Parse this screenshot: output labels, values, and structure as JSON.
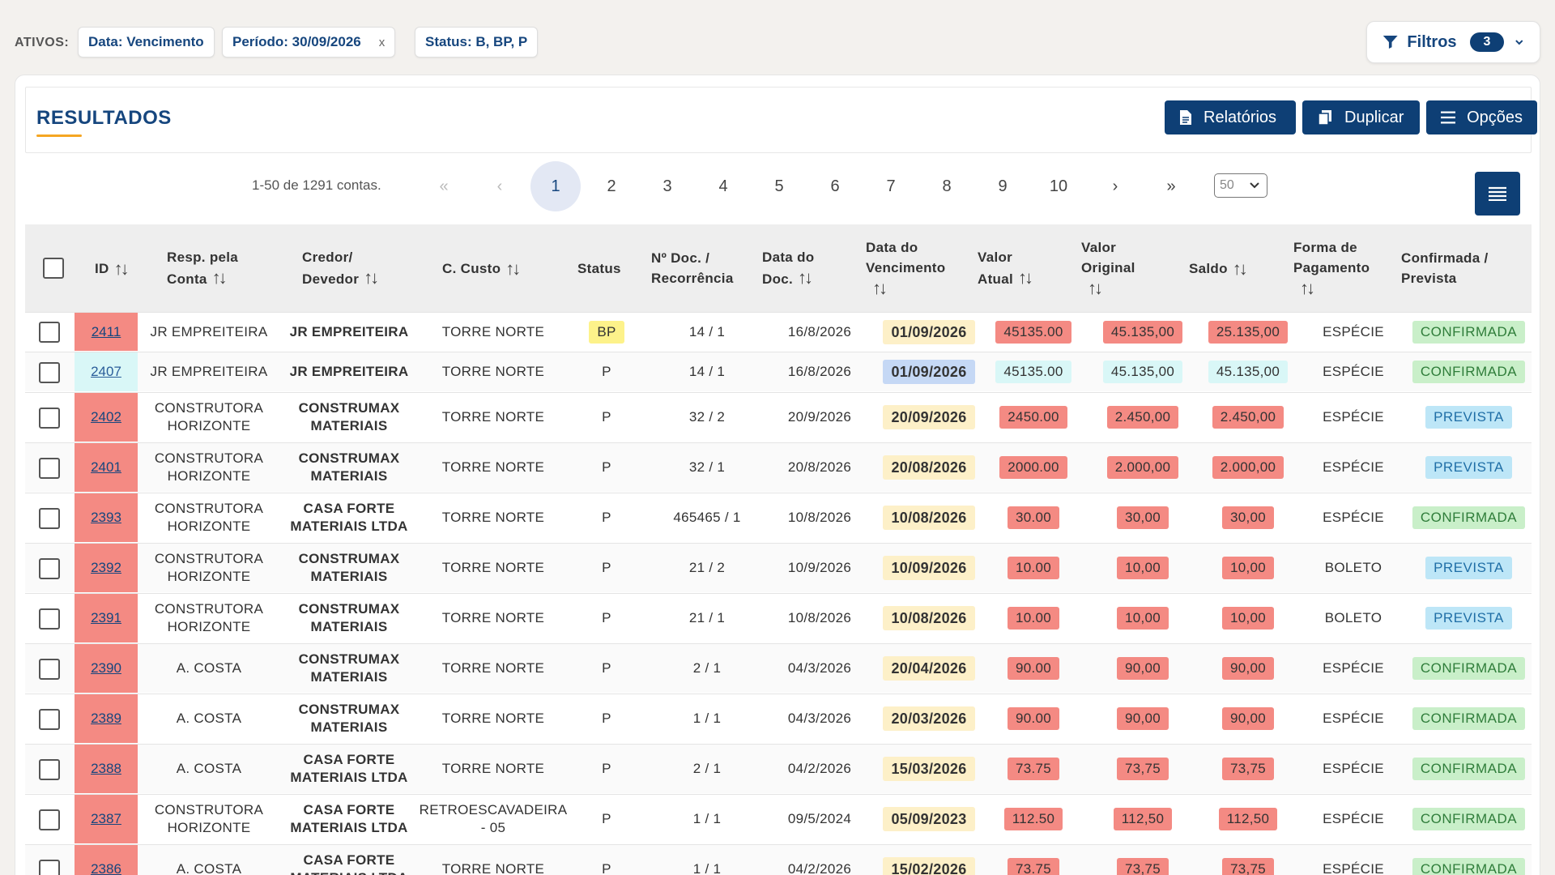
{
  "filters": {
    "ativos_label": "ATIVOS:",
    "chips": [
      {
        "label": "Data: Vencimento",
        "removable": false
      },
      {
        "label": "Período: 30/09/2026",
        "removable": true
      },
      {
        "label": "Status: B, BP, P",
        "removable": false
      }
    ],
    "remove_glyph": "x",
    "filtros_label": "Filtros",
    "filtros_count": "3"
  },
  "results": {
    "title": "RESULTADOS",
    "buttons": [
      {
        "label": "Relatórios",
        "icon": "document-icon"
      },
      {
        "label": "Duplicar",
        "icon": "copy-icon"
      },
      {
        "label": "Opções",
        "icon": "list-icon"
      }
    ]
  },
  "pagination": {
    "info": "1-50 de 1291 contas.",
    "first": "«",
    "prev": "‹",
    "pages": [
      "1",
      "2",
      "3",
      "4",
      "5",
      "6",
      "7",
      "8",
      "9",
      "10"
    ],
    "current": "1",
    "next": "›",
    "last": "»",
    "per_page": "50"
  },
  "table": {
    "headers": {
      "id": "ID",
      "resp": [
        "Resp. pela",
        "Conta"
      ],
      "credor": [
        "Credor/",
        "Devedor"
      ],
      "ccusto": "C. Custo",
      "status": "Status",
      "ndoc": [
        "Nº Doc. /",
        "Recorrência"
      ],
      "datadoc": [
        "Data do",
        "Doc."
      ],
      "venc": [
        "Data do",
        "Vencimento"
      ],
      "vatual": [
        "Valor",
        "Atual"
      ],
      "voriginal": [
        "Valor",
        "Original"
      ],
      "saldo": "Saldo",
      "forma": [
        "Forma de",
        "Pagamento"
      ],
      "conf": [
        "Confirmada /",
        "Prevista"
      ]
    },
    "colors": {
      "red": "#f48a83",
      "teal": "#d9f7f7",
      "blue": "#c5d8f5",
      "yellow": "#fdf0c8",
      "confirmada": "#c9efc9",
      "prevista": "#bde6f7"
    },
    "rows": [
      {
        "id": "2411",
        "id_color": "red",
        "resp": [
          "JR EMPREITEIRA"
        ],
        "credor": [
          "JR EMPREITEIRA"
        ],
        "ccusto": [
          "TORRE NORTE"
        ],
        "status": "BP",
        "ndoc": "14 / 1",
        "datadoc": "16/8/2026",
        "venc": "01/09/2026",
        "venc_color": "yellow",
        "vatual": "45135.00",
        "voriginal": "45.135,00",
        "saldo": "25.135,00",
        "val_color": "red",
        "forma": "ESPÉCIE",
        "conf": "CONFIRMADA"
      },
      {
        "id": "2407",
        "id_color": "teal",
        "resp": [
          "JR EMPREITEIRA"
        ],
        "credor": [
          "JR EMPREITEIRA"
        ],
        "ccusto": [
          "TORRE NORTE"
        ],
        "status": "P",
        "ndoc": "14 / 1",
        "datadoc": "16/8/2026",
        "venc": "01/09/2026",
        "venc_color": "blue",
        "vatual": "45135.00",
        "voriginal": "45.135,00",
        "saldo": "45.135,00",
        "val_color": "teal",
        "forma": "ESPÉCIE",
        "conf": "CONFIRMADA"
      },
      {
        "id": "2402",
        "id_color": "red",
        "resp": [
          "CONSTRUTORA",
          "HORIZONTE"
        ],
        "credor": [
          "CONSTRUMAX",
          "MATERIAIS"
        ],
        "ccusto": [
          "TORRE NORTE"
        ],
        "status": "P",
        "ndoc": "32 / 2",
        "datadoc": "20/9/2026",
        "venc": "20/09/2026",
        "venc_color": "yellow",
        "vatual": "2450.00",
        "voriginal": "2.450,00",
        "saldo": "2.450,00",
        "val_color": "red",
        "forma": "ESPÉCIE",
        "conf": "PREVISTA"
      },
      {
        "id": "2401",
        "id_color": "red",
        "resp": [
          "CONSTRUTORA",
          "HORIZONTE"
        ],
        "credor": [
          "CONSTRUMAX",
          "MATERIAIS"
        ],
        "ccusto": [
          "TORRE NORTE"
        ],
        "status": "P",
        "ndoc": "32 / 1",
        "datadoc": "20/8/2026",
        "venc": "20/08/2026",
        "venc_color": "yellow",
        "vatual": "2000.00",
        "voriginal": "2.000,00",
        "saldo": "2.000,00",
        "val_color": "red",
        "forma": "ESPÉCIE",
        "conf": "PREVISTA"
      },
      {
        "id": "2393",
        "id_color": "red",
        "resp": [
          "CONSTRUTORA",
          "HORIZONTE"
        ],
        "credor": [
          "CASA FORTE",
          "MATERIAIS LTDA"
        ],
        "ccusto": [
          "TORRE NORTE"
        ],
        "status": "P",
        "ndoc": "465465 / 1",
        "datadoc": "10/8/2026",
        "venc": "10/08/2026",
        "venc_color": "yellow",
        "vatual": "30.00",
        "voriginal": "30,00",
        "saldo": "30,00",
        "val_color": "red",
        "forma": "ESPÉCIE",
        "conf": "CONFIRMADA"
      },
      {
        "id": "2392",
        "id_color": "red",
        "resp": [
          "CONSTRUTORA",
          "HORIZONTE"
        ],
        "credor": [
          "CONSTRUMAX",
          "MATERIAIS"
        ],
        "ccusto": [
          "TORRE NORTE"
        ],
        "status": "P",
        "ndoc": "21 / 2",
        "datadoc": "10/9/2026",
        "venc": "10/09/2026",
        "venc_color": "yellow",
        "vatual": "10.00",
        "voriginal": "10,00",
        "saldo": "10,00",
        "val_color": "red",
        "forma": "BOLETO",
        "conf": "PREVISTA"
      },
      {
        "id": "2391",
        "id_color": "red",
        "resp": [
          "CONSTRUTORA",
          "HORIZONTE"
        ],
        "credor": [
          "CONSTRUMAX",
          "MATERIAIS"
        ],
        "ccusto": [
          "TORRE NORTE"
        ],
        "status": "P",
        "ndoc": "21 / 1",
        "datadoc": "10/8/2026",
        "venc": "10/08/2026",
        "venc_color": "yellow",
        "vatual": "10.00",
        "voriginal": "10,00",
        "saldo": "10,00",
        "val_color": "red",
        "forma": "BOLETO",
        "conf": "PREVISTA"
      },
      {
        "id": "2390",
        "id_color": "red",
        "resp": [
          "A. COSTA"
        ],
        "credor": [
          "CONSTRUMAX",
          "MATERIAIS"
        ],
        "ccusto": [
          "TORRE NORTE"
        ],
        "status": "P",
        "ndoc": "2 / 1",
        "datadoc": "04/3/2026",
        "venc": "20/04/2026",
        "venc_color": "yellow",
        "vatual": "90.00",
        "voriginal": "90,00",
        "saldo": "90,00",
        "val_color": "red",
        "forma": "ESPÉCIE",
        "conf": "CONFIRMADA"
      },
      {
        "id": "2389",
        "id_color": "red",
        "resp": [
          "A. COSTA"
        ],
        "credor": [
          "CONSTRUMAX",
          "MATERIAIS"
        ],
        "ccusto": [
          "TORRE NORTE"
        ],
        "status": "P",
        "ndoc": "1 / 1",
        "datadoc": "04/3/2026",
        "venc": "20/03/2026",
        "venc_color": "yellow",
        "vatual": "90.00",
        "voriginal": "90,00",
        "saldo": "90,00",
        "val_color": "red",
        "forma": "ESPÉCIE",
        "conf": "CONFIRMADA"
      },
      {
        "id": "2388",
        "id_color": "red",
        "resp": [
          "A. COSTA"
        ],
        "credor": [
          "CASA FORTE",
          "MATERIAIS LTDA"
        ],
        "ccusto": [
          "TORRE NORTE"
        ],
        "status": "P",
        "ndoc": "2 / 1",
        "datadoc": "04/2/2026",
        "venc": "15/03/2026",
        "venc_color": "yellow",
        "vatual": "73.75",
        "voriginal": "73,75",
        "saldo": "73,75",
        "val_color": "red",
        "forma": "ESPÉCIE",
        "conf": "CONFIRMADA"
      },
      {
        "id": "2387",
        "id_color": "red",
        "resp": [
          "CONSTRUTORA",
          "HORIZONTE"
        ],
        "credor": [
          "CASA FORTE",
          "MATERIAIS LTDA"
        ],
        "ccusto": [
          "RETROESCAVADEIRA",
          "- 05"
        ],
        "status": "P",
        "ndoc": "1 / 1",
        "datadoc": "09/5/2024",
        "venc": "05/09/2023",
        "venc_color": "yellow",
        "vatual": "112.50",
        "voriginal": "112,50",
        "saldo": "112,50",
        "val_color": "red",
        "forma": "ESPÉCIE",
        "conf": "CONFIRMADA"
      },
      {
        "id": "2386",
        "id_color": "red",
        "resp": [
          "A. COSTA"
        ],
        "credor": [
          "CASA FORTE",
          "MATERIAIS LTDA"
        ],
        "ccusto": [
          "TORRE NORTE"
        ],
        "status": "P",
        "ndoc": "1 / 1",
        "datadoc": "04/2/2026",
        "venc": "15/02/2026",
        "venc_color": "yellow",
        "vatual": "73.75",
        "voriginal": "73,75",
        "saldo": "73,75",
        "val_color": "red",
        "forma": "ESPÉCIE",
        "conf": "CONFIRMADA"
      }
    ]
  }
}
